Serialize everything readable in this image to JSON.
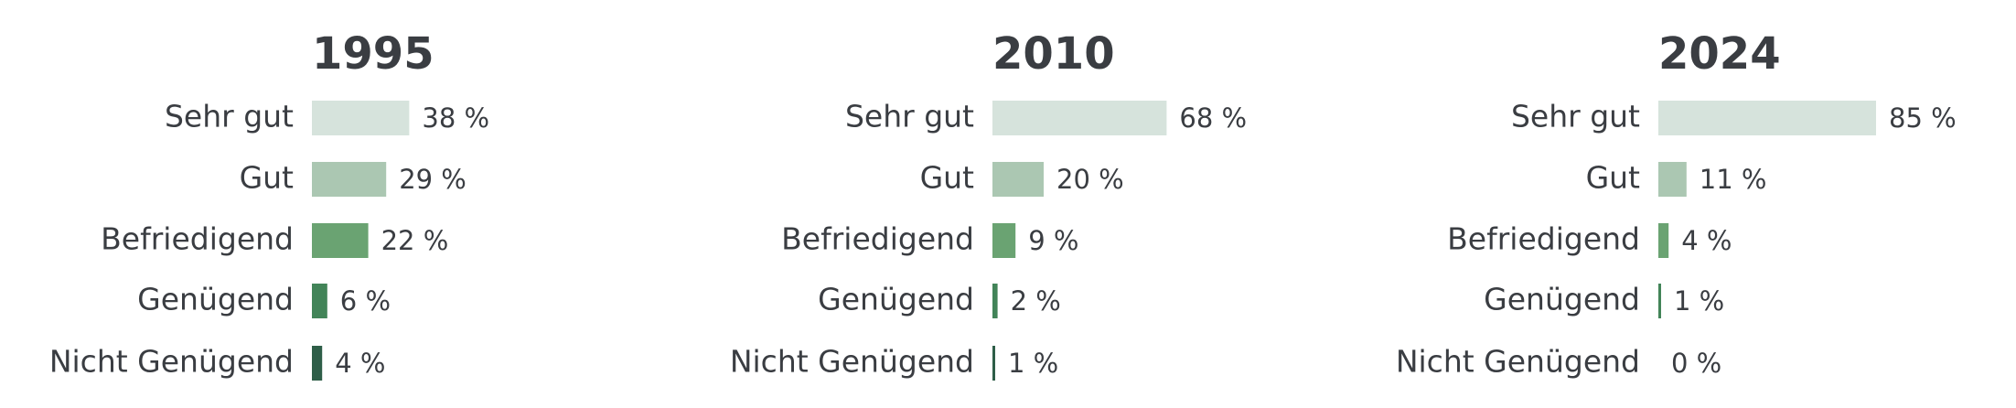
{
  "chart_data": [
    {
      "type": "bar",
      "orientation": "horizontal",
      "title": "1995",
      "categories": [
        "Sehr gut",
        "Gut",
        "Befriedigend",
        "Genügend",
        "Nicht Genügend"
      ],
      "values": [
        38,
        29,
        22,
        6,
        4
      ],
      "value_labels": [
        "38 %",
        "29 %",
        "22 %",
        "6 %",
        "4 %"
      ],
      "xlim": [
        0,
        100
      ],
      "grid": false,
      "legend": "none"
    },
    {
      "type": "bar",
      "orientation": "horizontal",
      "title": "2010",
      "categories": [
        "Sehr gut",
        "Gut",
        "Befriedigend",
        "Genügend",
        "Nicht Genügend"
      ],
      "values": [
        68,
        20,
        9,
        2,
        1
      ],
      "value_labels": [
        "68 %",
        "20 %",
        "9 %",
        "2 %",
        "1 %"
      ],
      "xlim": [
        0,
        100
      ],
      "grid": false,
      "legend": "none"
    },
    {
      "type": "bar",
      "orientation": "horizontal",
      "title": "2024",
      "categories": [
        "Sehr gut",
        "Gut",
        "Befriedigend",
        "Genügend",
        "Nicht Genügend"
      ],
      "values": [
        85,
        11,
        4,
        1,
        0
      ],
      "value_labels": [
        "85 %",
        "11 %",
        "4 %",
        "1 %",
        "0 %"
      ],
      "xlim": [
        0,
        100
      ],
      "grid": false,
      "legend": "none"
    }
  ],
  "colors": {
    "categories": [
      "#d6e3dc",
      "#abc7b2",
      "#6aa372",
      "#428458",
      "#2e5e48"
    ],
    "text": "#3a3d42"
  }
}
